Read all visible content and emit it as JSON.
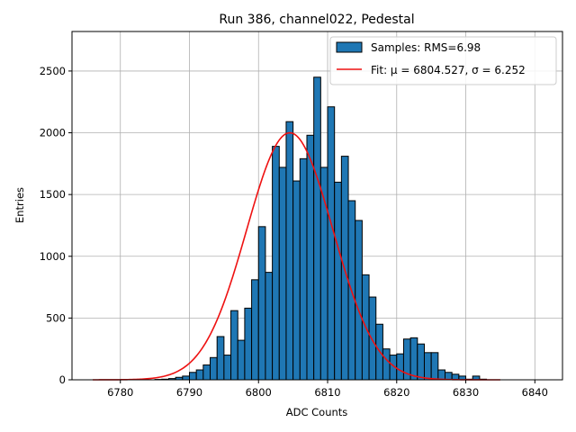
{
  "chart_data": {
    "type": "bar",
    "title": "Run 386, channel022, Pedestal",
    "xlabel": "ADC Counts",
    "ylabel": "Entries",
    "xlim": [
      6773,
      6844
    ],
    "ylim": [
      0,
      2820
    ],
    "xticks": [
      6780,
      6790,
      6800,
      6810,
      6820,
      6830,
      6840
    ],
    "yticks": [
      0,
      500,
      1000,
      1500,
      2000,
      2500
    ],
    "grid": true,
    "legend_position": "top-right",
    "legend": {
      "samples": "Samples: RMS=6.98",
      "fit": "Fit: μ = 6804.527, σ = 6.252"
    },
    "histogram": {
      "name": "Samples",
      "bin_start": 6785,
      "bin_width": 1,
      "values": [
        3,
        5,
        10,
        20,
        30,
        60,
        80,
        120,
        180,
        350,
        200,
        560,
        320,
        580,
        810,
        1240,
        870,
        1890,
        1720,
        2090,
        1610,
        1790,
        1980,
        2450,
        1720,
        2210,
        1600,
        1810,
        1450,
        1290,
        850,
        670,
        450,
        250,
        200,
        210,
        330,
        340,
        290,
        220,
        220,
        80,
        60,
        45,
        30,
        5,
        30,
        5
      ]
    },
    "fit": {
      "name": "Fit",
      "mu": 6804.527,
      "sigma": 6.252,
      "amplitude": 2000,
      "x_range": [
        6776,
        6835
      ]
    }
  }
}
